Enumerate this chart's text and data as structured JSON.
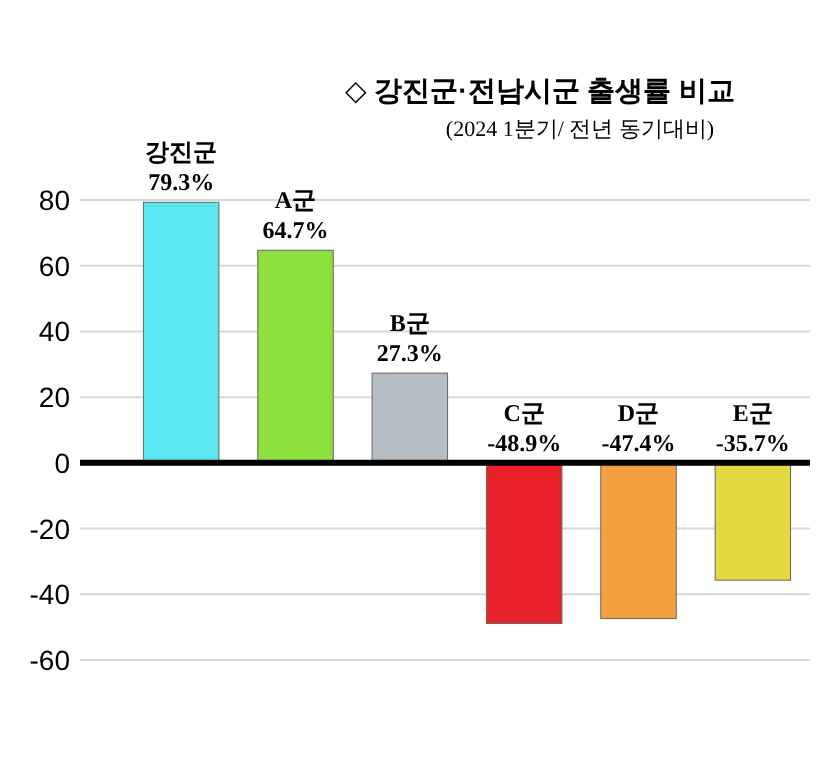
{
  "chart_data": {
    "type": "bar",
    "title": "◇ 강진군·전남시군 출생률 비교",
    "subtitle": "(2024 1분기/ 전년 동기대비)",
    "categories": [
      "강진군",
      "A군",
      "B군",
      "C군",
      "D군",
      "E군"
    ],
    "values": [
      79.3,
      64.7,
      27.3,
      -48.9,
      -47.4,
      -35.7
    ],
    "value_labels": [
      "79.3%",
      "64.7%",
      "27.3%",
      "-48.9%",
      "-47.4%",
      "-35.7%"
    ],
    "colors": [
      "#5ce6f0",
      "#8ee03c",
      "#b4bcc4",
      "#e8202a",
      "#f5a040",
      "#e6d840"
    ],
    "ylim": [
      -60,
      80
    ],
    "yticks": [
      -60,
      -40,
      -20,
      0,
      20,
      40,
      60,
      80
    ],
    "grid": "y"
  }
}
